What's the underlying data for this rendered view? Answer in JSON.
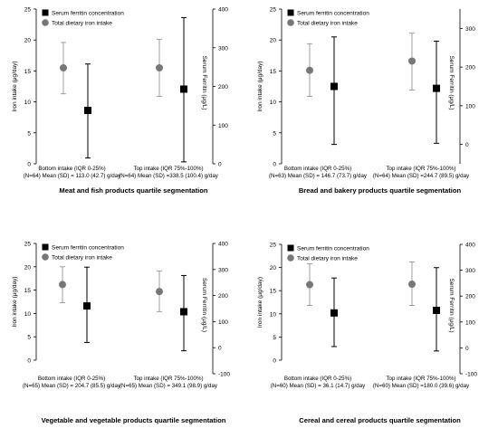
{
  "chart_data": [
    {
      "type": "scatter",
      "title": "Meat and fish products quartile segmentation",
      "ylabel_left": "Iron intake (μg/day)",
      "ylabel_right": "Serum Ferritin (μg/L)",
      "ylim_left": [
        0,
        25
      ],
      "ylim_right": [
        0,
        400
      ],
      "yticks_left": [
        "0",
        "5",
        "10",
        "15",
        "20",
        "25"
      ],
      "yticks_right": [
        "0",
        "100",
        "200",
        "300",
        "400"
      ],
      "legend": [
        "Serum ferritin concentration",
        "Total dietary iron intake"
      ],
      "categories": [
        {
          "line1": "Bottom intake (IQR 0-25%)",
          "line2": "(N=64) Mean (SD) = 113.0 (42.7) g/day"
        },
        {
          "line1": "Top intake (IQR 75%-100%)",
          "line2": "(N=64) Mean (SD) =338.5 (100.4) g/day"
        }
      ],
      "series": [
        {
          "name": "Total dietary iron intake",
          "axis": "left",
          "values": [
            15.5,
            15.5
          ],
          "lower": [
            11.3,
            10.9
          ],
          "upper": [
            19.6,
            20.1
          ]
        },
        {
          "name": "Serum ferritin concentration",
          "axis": "right",
          "values": [
            138,
            193
          ],
          "lower": [
            15,
            5
          ],
          "upper": [
            258,
            378
          ]
        }
      ]
    },
    {
      "type": "scatter",
      "title": "Bread and bakery products quartile segmentation",
      "ylabel_left": "Iron intake (μg/day)",
      "ylabel_right": "Serum Ferritin (μg/L)",
      "ylim_left": [
        0,
        25
      ],
      "ylim_right": [
        -50,
        350
      ],
      "yticks_left": [
        "0",
        "5",
        "10",
        "15",
        "20",
        "25"
      ],
      "yticks_right": [
        "0",
        "100",
        "200",
        "300"
      ],
      "legend": [
        "Serum ferritin concentration",
        "Total dietary iron intake"
      ],
      "categories": [
        {
          "line1": "Bottom intake (IQR 0-25%)",
          "line2": "(N=63) Mean (SD) = 146.7 (73.7) g/day"
        },
        {
          "line1": "Top intake (IQR 75%-100%)",
          "line2": "(N=64) Mean (SD) =244.7 (89.5) g/day"
        }
      ],
      "series": [
        {
          "name": "Total dietary iron intake",
          "axis": "left",
          "values": [
            15.1,
            16.6
          ],
          "lower": [
            10.9,
            11.9
          ],
          "upper": [
            19.4,
            21.1
          ]
        },
        {
          "name": "Serum ferritin concentration",
          "axis": "right",
          "values": [
            150,
            145
          ],
          "lower": [
            0,
            3
          ],
          "upper": [
            278,
            267
          ]
        }
      ]
    },
    {
      "type": "scatter",
      "title": "Vegetable and vegetable products quartile segmentation",
      "ylabel_left": "Iron intake (μg/day)",
      "ylabel_right": "Serum Ferritin (μg/L)",
      "ylim_left": [
        0,
        25
      ],
      "ylim_right": [
        -100,
        400
      ],
      "yticks_left": [
        "0",
        "5",
        "10",
        "15",
        "20",
        "25"
      ],
      "yticks_right": [
        "-100",
        "0",
        "100",
        "200",
        "300",
        "400"
      ],
      "legend": [
        "Serum ferritin concentration",
        "Total dietary iron intake"
      ],
      "categories": [
        {
          "line1": "Bottom intake (IQR 0-25%)",
          "line2": "(N=65) Mean (SD) = 204.7 (85.5) g/day"
        },
        {
          "line1": "Top intake (IQR 75%-100%)",
          "line2": "(N=65) Mean (SD) = 349.1 (98.9) g/day"
        }
      ],
      "series": [
        {
          "name": "Total dietary iron intake",
          "axis": "left",
          "values": [
            16.2,
            14.7
          ],
          "lower": [
            12.3,
            10.4
          ],
          "upper": [
            20.0,
            19.1
          ]
        },
        {
          "name": "Serum ferritin concentration",
          "axis": "right",
          "values": [
            160,
            138
          ],
          "lower": [
            20,
            -12
          ],
          "upper": [
            309,
            277
          ]
        }
      ]
    },
    {
      "type": "scatter",
      "title": "Cereal and cereal products quartile segmentation",
      "ylabel_left": "Iron intake (μg/day)",
      "ylabel_right": "Serum Ferritin (μg/L)",
      "ylim_left": [
        0,
        25
      ],
      "ylim_right": [
        -100,
        400
      ],
      "yticks_left": [
        "0",
        "5",
        "10",
        "15",
        "20",
        "25"
      ],
      "yticks_right": [
        "-100",
        "0",
        "100",
        "200",
        "300",
        "400"
      ],
      "legend": [
        "Serum ferritin concentration",
        "Total dietary iron intake"
      ],
      "categories": [
        {
          "line1": "Bottom intake (IQR 0-25%)",
          "line2": "(N=60) Mean (SD) = 36.1 (14.7) g/day"
        },
        {
          "line1": "Top intake (IQR 75%-100%)",
          "line2": "(N=60) Mean (SD) =180.0 (39.6) g/day"
        }
      ],
      "series": [
        {
          "name": "Total dietary iron intake",
          "axis": "left",
          "values": [
            16.3,
            16.4
          ],
          "lower": [
            11.8,
            11.8
          ],
          "upper": [
            20.8,
            21.2
          ]
        },
        {
          "name": "Serum ferritin concentration",
          "axis": "right",
          "values": [
            135,
            145
          ],
          "lower": [
            5,
            -12
          ],
          "upper": [
            270,
            310
          ]
        }
      ]
    }
  ]
}
